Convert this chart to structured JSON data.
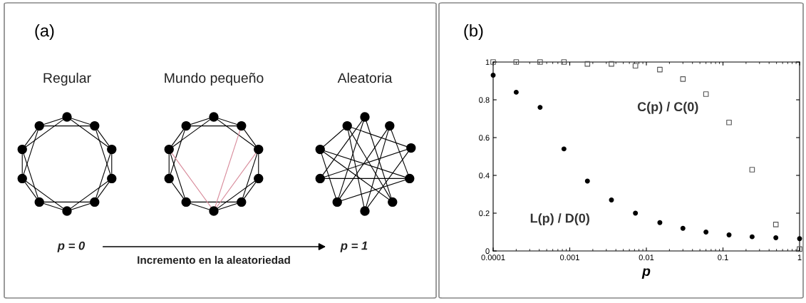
{
  "chart_data": [
    {
      "type": "other",
      "title": "(a)",
      "annotations": [
        "Regular",
        "Mundo pequeño",
        "Aleatoria",
        "p = 0",
        "Incremento en la aleatoriedad",
        "p = 1"
      ]
    },
    {
      "type": "scatter",
      "title": "(b)",
      "xlabel": "p",
      "log": "x",
      "x": [
        0.0001,
        0.0002,
        0.00041,
        0.00084,
        0.0017,
        0.0035,
        0.0072,
        0.015,
        0.03,
        0.06,
        0.12,
        0.24,
        0.49,
        1
      ],
      "series": [
        {
          "name": "C(p) / C(0)",
          "color": "#555555",
          "marker": "square",
          "values": [
            1,
            1,
            1,
            1,
            0.99,
            0.99,
            0.98,
            0.96,
            0.91,
            0.83,
            0.68,
            0.43,
            0.14,
            0.01
          ]
        },
        {
          "name": "L(p) / D(0)",
          "color": "#000000",
          "marker": "circle",
          "values": [
            0.93,
            0.84,
            0.76,
            0.54,
            0.37,
            0.27,
            0.2,
            0.15,
            0.12,
            0.1,
            0.085,
            0.075,
            0.07,
            0.065
          ]
        }
      ],
      "xlim": [
        0.0001,
        1
      ],
      "xticks": [
        0.0001,
        0.001,
        0.01,
        0.1,
        1
      ],
      "ylim": [
        0,
        1
      ],
      "yticks": [
        0,
        0.2,
        0.4,
        0.6,
        0.8,
        1
      ],
      "grid": false,
      "legend": false
    }
  ]
}
